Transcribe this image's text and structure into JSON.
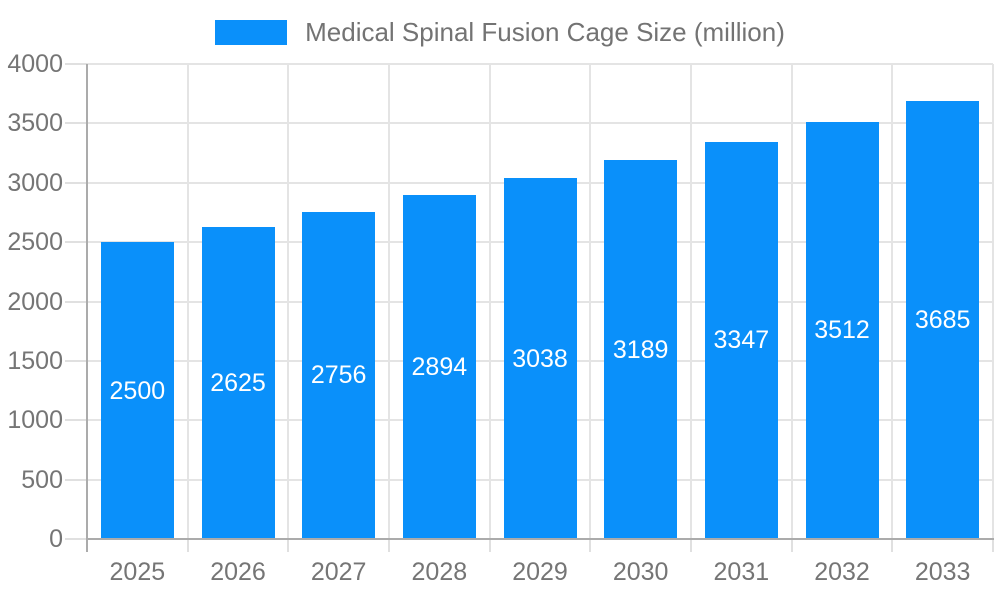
{
  "legend": {
    "label": "Medical Spinal Fusion Cage Size (million)"
  },
  "chart_data": {
    "type": "bar",
    "title": "Medical Spinal Fusion Cage Size (million)",
    "categories": [
      "2025",
      "2026",
      "2027",
      "2028",
      "2029",
      "2030",
      "2031",
      "2032",
      "2033"
    ],
    "values": [
      2500,
      2625,
      2756,
      2894,
      3038,
      3189,
      3347,
      3512,
      3685
    ],
    "value_labels": [
      "2500",
      "2625",
      "2756",
      "2894",
      "3038",
      "3189",
      "3347",
      "3512",
      "3685"
    ],
    "xlabel": "",
    "ylabel": "",
    "ylim": [
      0,
      4000
    ],
    "yticks": [
      0,
      500,
      1000,
      1500,
      2000,
      2500,
      3000,
      3500,
      4000
    ],
    "grid": true,
    "legend_position": "top-center",
    "value_label_position": "inside-center"
  },
  "colors": {
    "bar": "#0a90fa",
    "grid": "#e4e4e4",
    "axis": "#ababab",
    "tick": "#e0e0e0",
    "tick_label": "#757575",
    "value_label": "#ffffff",
    "legend_text": "#737373",
    "background": "#ffffff"
  }
}
